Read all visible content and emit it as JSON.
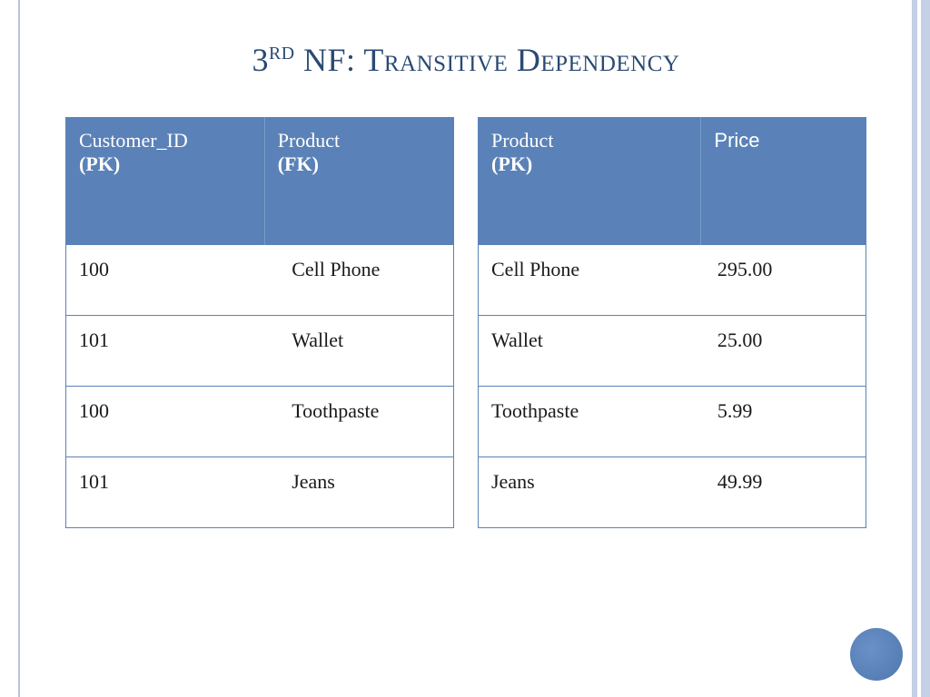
{
  "title": {
    "prefix": "3",
    "ordinal_sup": "RD",
    "rest": " NF:  Transitive Dependency"
  },
  "colors": {
    "header_bg": "#5a82b8",
    "header_text": "#ffffff",
    "border": "#5a82b8",
    "title_color": "#2a4a73",
    "stripe": "#c5d0e6",
    "circle": "#4f77ad"
  },
  "left_table": {
    "columns": [
      {
        "label": "Customer_ID",
        "key_note": "(PK)"
      },
      {
        "label": "Product",
        "key_note": "(FK)"
      }
    ],
    "rows": [
      [
        "100",
        "Cell Phone"
      ],
      [
        "101",
        "Wallet"
      ],
      [
        "100",
        "Toothpaste"
      ],
      [
        "101",
        "Jeans"
      ]
    ]
  },
  "right_table": {
    "columns": [
      {
        "label": "Product",
        "key_note": "(PK)",
        "serif": true
      },
      {
        "label": "Price",
        "key_note": "",
        "serif": false
      }
    ],
    "rows": [
      [
        "Cell Phone",
        "295.00"
      ],
      [
        "Wallet",
        "25.00"
      ],
      [
        "Toothpaste",
        "5.99"
      ],
      [
        "Jeans",
        "49.99"
      ]
    ]
  }
}
